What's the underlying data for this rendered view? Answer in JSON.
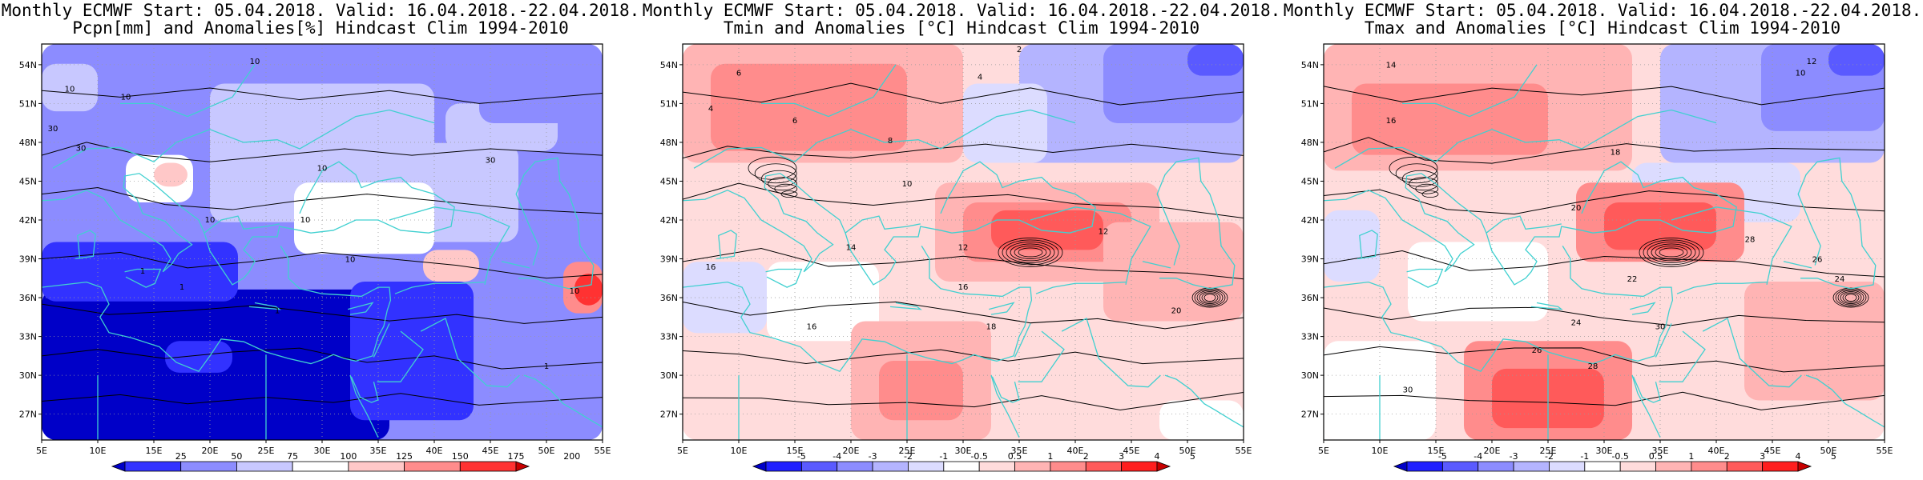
{
  "panels": [
    {
      "line1": "Monthly ECMWF Start: 05.04.2018. Valid: 16.04.2018.-22.04.2018.",
      "line2": "Pcpn[mm] and Anomalies[%] Hindcast Clim 1994-2010",
      "colorbar_labels": [
        "25",
        "50",
        "75",
        "100",
        "125",
        "150",
        "175",
        "200"
      ],
      "contour_labels": [
        "10",
        "10",
        "30",
        "10",
        "10",
        "30",
        "30",
        "10",
        "10",
        "10",
        "1",
        "1",
        "1",
        "10",
        "1"
      ]
    },
    {
      "line1": "Monthly ECMWF Start: 05.04.2018. Valid: 16.04.2018.-22.04.2018.",
      "line2": "Tmin and Anomalies [°C] Hindcast Clim 1994-2010",
      "colorbar_labels": [
        "-5",
        "-4",
        "-3",
        "-2",
        "-1",
        "-0.5",
        "0.5",
        "1",
        "2",
        "3",
        "4",
        "5"
      ],
      "contour_labels": [
        "2",
        "4",
        "6",
        "4",
        "6",
        "8",
        "10",
        "12",
        "12",
        "14",
        "16",
        "16",
        "18",
        "16",
        "20"
      ]
    },
    {
      "line1": "Monthly ECMWF Start: 05.04.2018. Valid: 16.04.2018.-22.04.2018.",
      "line2": "Tmax and Anomalies [°C] Hindcast Clim 1994-2010",
      "colorbar_labels": [
        "-5",
        "-4",
        "-3",
        "-2",
        "-1",
        "-0.5",
        "0.5",
        "1",
        "2",
        "3",
        "4",
        "5"
      ],
      "contour_labels": [
        "12",
        "10",
        "14",
        "16",
        "18",
        "20",
        "22",
        "24",
        "26",
        "28",
        "30",
        "28",
        "26",
        "24",
        "30"
      ]
    }
  ],
  "axes": {
    "lat_labels": [
      "54N",
      "51N",
      "48N",
      "45N",
      "42N",
      "39N",
      "36N",
      "33N",
      "30N",
      "27N"
    ],
    "lon_labels": [
      "5E",
      "10E",
      "15E",
      "20E",
      "25E",
      "30E",
      "35E",
      "40E",
      "45E",
      "50E",
      "55E"
    ]
  },
  "colors": {
    "precip_scale": [
      "#0000c8",
      "#3232ff",
      "#8c8cff",
      "#c8c8ff",
      "#ffffff",
      "#ffc8c8",
      "#ff8c8c",
      "#ff3232",
      "#c80000"
    ],
    "temp_scale": [
      "#0000c8",
      "#1e1eff",
      "#5a5aff",
      "#8c8cff",
      "#b4b4ff",
      "#dcdcff",
      "#ffffff",
      "#ffdcdc",
      "#ffb4b4",
      "#ff8c8c",
      "#ff5a5a",
      "#ff1e1e",
      "#c80000"
    ],
    "coast": "#40d0d0",
    "contour": "#000000"
  }
}
